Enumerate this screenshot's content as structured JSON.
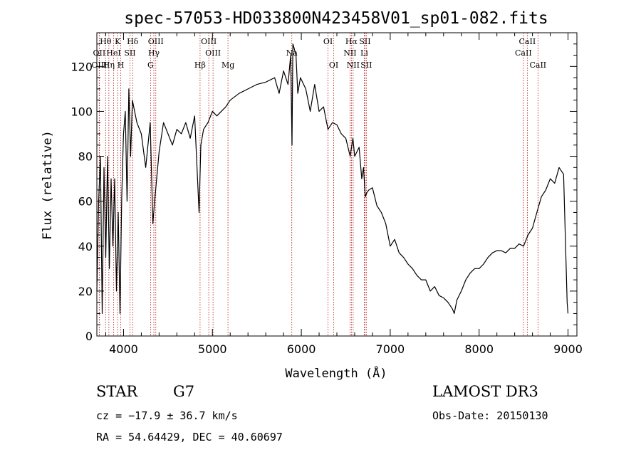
{
  "chart_data": {
    "type": "line",
    "title": "spec-57053-HD033800N423458V01_sp01-082.fits",
    "xlabel": "Wavelength (Å)",
    "ylabel": "Flux (relative)",
    "xlim": [
      3700,
      9100
    ],
    "ylim": [
      0,
      135
    ],
    "xticks": [
      4000,
      5000,
      6000,
      7000,
      8000,
      9000
    ],
    "yticks": [
      0,
      20,
      40,
      60,
      80,
      100,
      120
    ],
    "grid": false,
    "series": [
      {
        "x": [
          3700,
          3720,
          3740,
          3760,
          3780,
          3800,
          3820,
          3840,
          3860,
          3880,
          3900,
          3920,
          3940,
          3960,
          3980,
          4000,
          4020,
          4040,
          4060,
          4080,
          4100,
          4150,
          4200,
          4250,
          4300,
          4330,
          4350,
          4400,
          4450,
          4500,
          4550,
          4600,
          4650,
          4700,
          4750,
          4800,
          4850,
          4870,
          4900,
          4950,
          5000,
          5050,
          5100,
          5150,
          5200,
          5300,
          5400,
          5500,
          5600,
          5700,
          5750,
          5800,
          5850,
          5880,
          5895,
          5905,
          5920,
          5940,
          5960,
          5990,
          6050,
          6100,
          6150,
          6200,
          6250,
          6300,
          6350,
          6400,
          6450,
          6500,
          6550,
          6580,
          6600,
          6650,
          6680,
          6700,
          6720,
          6740,
          6760,
          6800,
          6850,
          6900,
          6950,
          7000,
          7050,
          7100,
          7150,
          7200,
          7250,
          7300,
          7350,
          7400,
          7450,
          7500,
          7550,
          7600,
          7650,
          7700,
          7720,
          7750,
          7800,
          7850,
          7900,
          7950,
          8000,
          8050,
          8100,
          8150,
          8200,
          8250,
          8300,
          8350,
          8400,
          8450,
          8500,
          8550,
          8600,
          8650,
          8700,
          8750,
          8800,
          8850,
          8900,
          8950,
          8990,
          9000
        ],
        "y": [
          20,
          60,
          80,
          10,
          75,
          35,
          80,
          30,
          70,
          40,
          70,
          20,
          55,
          10,
          62,
          90,
          100,
          60,
          110,
          80,
          105,
          95,
          90,
          75,
          95,
          50,
          60,
          82,
          95,
          90,
          85,
          92,
          90,
          95,
          88,
          98,
          55,
          85,
          92,
          95,
          100,
          98,
          100,
          102,
          105,
          108,
          110,
          112,
          113,
          115,
          108,
          118,
          112,
          125,
          85,
          130,
          128,
          125,
          108,
          115,
          110,
          100,
          112,
          100,
          102,
          92,
          95,
          94,
          90,
          88,
          80,
          88,
          80,
          84,
          70,
          75,
          62,
          64,
          65,
          66,
          58,
          55,
          50,
          40,
          43,
          37,
          35,
          32,
          30,
          27,
          25,
          25,
          20,
          22,
          18,
          17,
          15,
          12,
          10,
          16,
          20,
          25,
          28,
          30,
          30,
          32,
          35,
          37,
          38,
          38,
          37,
          39,
          39,
          41,
          40,
          45,
          48,
          55,
          62,
          65,
          70,
          68,
          75,
          72,
          15,
          10
        ]
      }
    ],
    "spectral_lines": [
      {
        "label": "Hθ",
        "x": 3798,
        "row": 1
      },
      {
        "label": "OII",
        "x": 3727,
        "row": 2
      },
      {
        "label": "OIII",
        "x": 3727,
        "row": 3
      },
      {
        "label": "HeI",
        "x": 3888,
        "row": 2
      },
      {
        "label": "Hη",
        "x": 3835,
        "row": 3
      },
      {
        "label": "K",
        "x": 3934,
        "row": 1
      },
      {
        "label": "H",
        "x": 3969,
        "row": 3
      },
      {
        "label": "SII",
        "x": 4072,
        "row": 2
      },
      {
        "label": "Hδ",
        "x": 4102,
        "row": 1
      },
      {
        "label": "OIII",
        "x": 4363,
        "row": 1
      },
      {
        "label": "Hγ",
        "x": 4341,
        "row": 2
      },
      {
        "label": "G",
        "x": 4304,
        "row": 3
      },
      {
        "label": "Hβ",
        "x": 4861,
        "row": 3
      },
      {
        "label": "OIII",
        "x": 4959,
        "row": 1
      },
      {
        "label": "OIII",
        "x": 5007,
        "row": 2
      },
      {
        "label": "Mg",
        "x": 5175,
        "row": 3
      },
      {
        "label": "Na",
        "x": 5893,
        "row": 2
      },
      {
        "label": "OI",
        "x": 6300,
        "row": 1
      },
      {
        "label": "OI",
        "x": 6364,
        "row": 3
      },
      {
        "label": "Hα",
        "x": 6563,
        "row": 1
      },
      {
        "label": "SII",
        "x": 6716,
        "row": 1
      },
      {
        "label": "NII",
        "x": 6548,
        "row": 2
      },
      {
        "label": "Li",
        "x": 6708,
        "row": 2
      },
      {
        "label": "NII",
        "x": 6583,
        "row": 3
      },
      {
        "label": "SII",
        "x": 6731,
        "row": 3
      },
      {
        "label": "CaII",
        "x": 8542,
        "row": 1
      },
      {
        "label": "CaII",
        "x": 8498,
        "row": 2
      },
      {
        "label": "CaII",
        "x": 8662,
        "row": 3
      }
    ]
  },
  "info": {
    "object_class": "STAR",
    "subclass": "G7",
    "survey": "LAMOST DR3",
    "cz": "cz = −17.9 ± 36.7 km/s",
    "obs_date": "Obs-Date: 20150130",
    "coords": "RA =  54.64429, DEC =  40.60697"
  }
}
